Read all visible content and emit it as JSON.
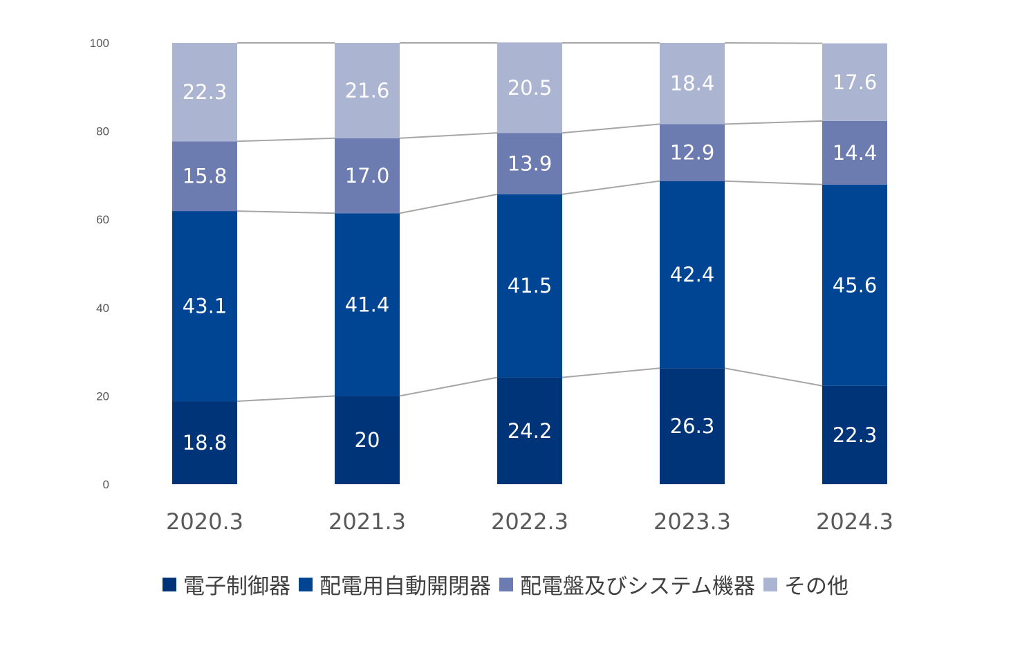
{
  "chart_data": {
    "type": "bar",
    "stacked": true,
    "categories": [
      "2020.3",
      "2021.3",
      "2022.3",
      "2023.3",
      "2024.3"
    ],
    "series": [
      {
        "name": "電子制御器",
        "color": "#003478",
        "values": [
          18.8,
          20,
          24.2,
          26.3,
          22.3
        ],
        "labels": [
          "18.8",
          "20",
          "24.2",
          "26.3",
          "22.3"
        ]
      },
      {
        "name": "配電用自動開閉器",
        "color": "#004494",
        "values": [
          43.1,
          41.4,
          41.5,
          42.4,
          45.6
        ],
        "labels": [
          "43.1",
          "41.4",
          "41.5",
          "42.4",
          "45.6"
        ]
      },
      {
        "name": "配電盤及びシステム機器",
        "color": "#6c7bb0",
        "values": [
          15.8,
          17.0,
          13.9,
          12.9,
          14.4
        ],
        "labels": [
          "15.8",
          "17.0",
          "13.9",
          "12.9",
          "14.4"
        ]
      },
      {
        "name": "その他",
        "color": "#abb4d0",
        "values": [
          22.3,
          21.6,
          20.5,
          18.4,
          17.6
        ],
        "labels": [
          "22.3",
          "21.6",
          "20.5",
          "18.4",
          "17.6"
        ]
      }
    ],
    "yticks": [
      "0",
      "20",
      "40",
      "60",
      "80",
      "100"
    ],
    "ylim": [
      0,
      100
    ],
    "series_lines": true,
    "grid": false,
    "legend_position": "bottom"
  }
}
